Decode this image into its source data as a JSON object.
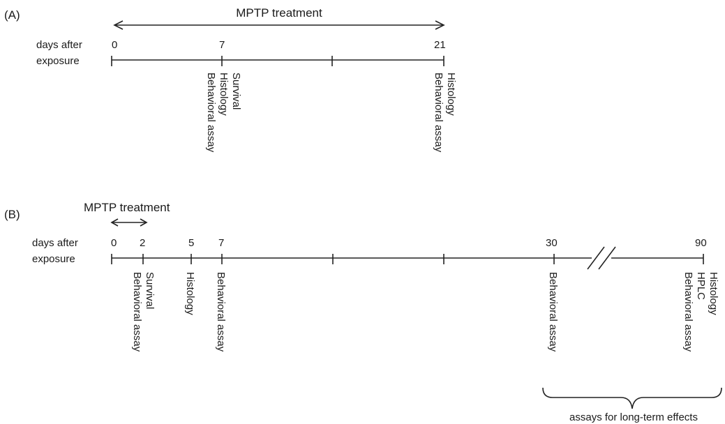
{
  "panel_a": {
    "label": "(A)",
    "treatment": "MPTP treatment",
    "axis_title_1": "days after",
    "axis_title_2": "exposure",
    "ticks": [
      "0",
      "7",
      "21"
    ],
    "events": [
      {
        "day": "7",
        "lines": [
          "Survival",
          "Histology",
          "Behavioral assay"
        ]
      },
      {
        "day": "21",
        "lines": [
          "Histology",
          "Behavioral assay"
        ]
      }
    ]
  },
  "panel_b": {
    "label": "(B)",
    "treatment": "MPTP treatment",
    "axis_title_1": "days after",
    "axis_title_2": "exposure",
    "ticks": [
      "0",
      "2",
      "5",
      "7",
      "30",
      "90"
    ],
    "events": [
      {
        "day": "2",
        "lines": [
          "Survival",
          "Behavioral assay"
        ]
      },
      {
        "day": "5",
        "lines": [
          "Histology"
        ]
      },
      {
        "day": "7",
        "lines": [
          "Behavioral assay"
        ]
      },
      {
        "day": "30",
        "lines": [
          "Behavioral assay"
        ]
      },
      {
        "day": "90",
        "lines": [
          "Histology",
          "HPLC",
          "Behavioral assay"
        ]
      }
    ],
    "bracket_label": "assays for long-term effects"
  }
}
